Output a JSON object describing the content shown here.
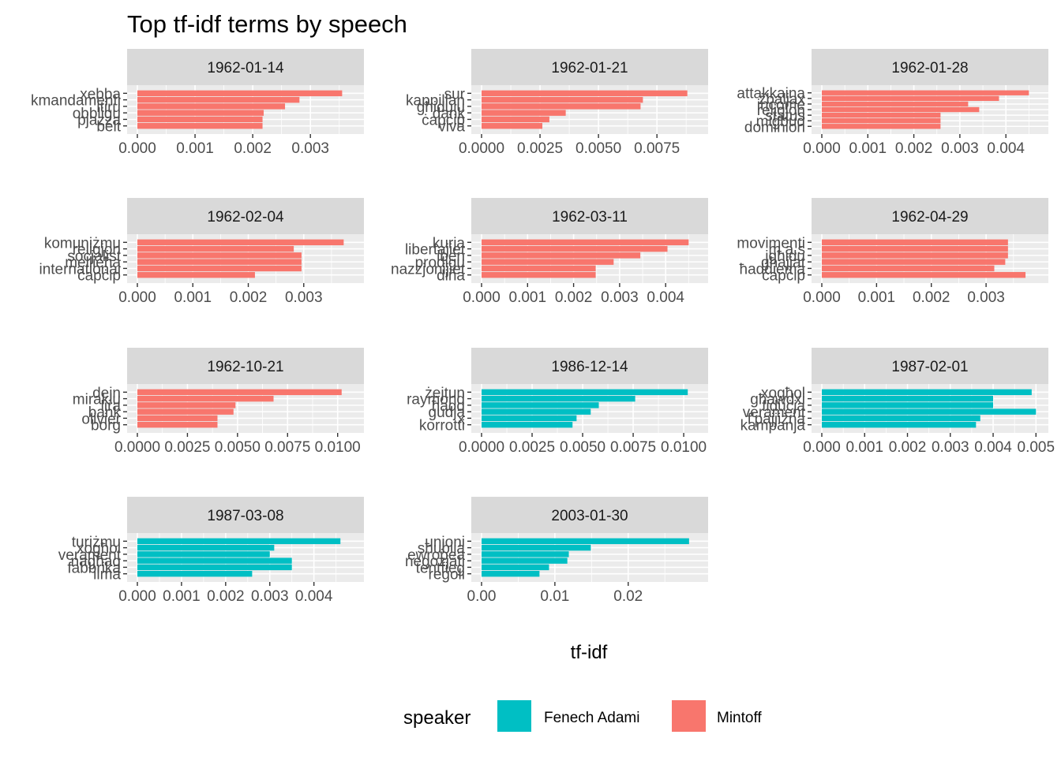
{
  "chart_data": {
    "type": "bar",
    "orientation": "horizontal",
    "title": "Top tf-idf terms by speech",
    "xlabel": "tf-idf",
    "ylabel": "",
    "grid": true,
    "legend": {
      "title": "speaker",
      "position": "bottom",
      "items": [
        {
          "name": "Fenech Adami",
          "color": "#00BFC4"
        },
        {
          "name": "Mintoff",
          "color": "#F8766D"
        }
      ]
    },
    "panels": [
      {
        "strip": "1962-01-14",
        "speaker": "Mintoff",
        "xlim": [
          0,
          0.00375
        ],
        "xticks": [
          0,
          0.001,
          0.002,
          0.003
        ],
        "xtick_labels": [
          "0.000",
          "0.001",
          "0.002",
          "0.003"
        ],
        "terms": [
          "xebba",
          "kmandamenti",
          "itiru",
          "obbligu",
          "pjazza",
          "belt"
        ],
        "values": [
          0.00355,
          0.00281,
          0.00256,
          0.00219,
          0.00217,
          0.00217
        ]
      },
      {
        "strip": "1962-01-21",
        "speaker": "Mintoff",
        "xlim": [
          0,
          0.00925
        ],
        "xticks": [
          0,
          0.0025,
          0.005,
          0.0075
        ],
        "xtick_labels": [
          "0.0000",
          "0.0025",
          "0.0050",
          "0.0075"
        ],
        "terms": [
          "sur",
          "kappillan",
          "għidulu",
          "dank",
          "ċapċip",
          "viva"
        ],
        "values": [
          0.0088,
          0.0069,
          0.0068,
          0.0036,
          0.0029,
          0.0026
        ]
      },
      {
        "strip": "1962-01-28",
        "speaker": "Mintoff",
        "xlim": [
          0,
          0.0047
        ],
        "xticks": [
          0,
          0.001,
          0.002,
          0.003,
          0.004
        ],
        "xtick_labels": [
          "0.000",
          "0.001",
          "0.002",
          "0.003",
          "0.004"
        ],
        "terms": [
          "attakkaina",
          "żbaljax",
          "income",
          "religjon",
          "status",
          "miġbud",
          "dominion"
        ],
        "values": [
          0.0045,
          0.00385,
          0.00318,
          0.00342,
          0.00258,
          0.00258,
          0.00258
        ]
      },
      {
        "strip": "1962-02-04",
        "speaker": "Mintoff",
        "xlim": [
          0,
          0.0039
        ],
        "xticks": [
          0,
          0.001,
          0.002,
          0.003
        ],
        "xtick_labels": [
          "0.000",
          "0.001",
          "0.002",
          "0.003"
        ],
        "terms": [
          "komuniżmu",
          "religjon",
          "soċjalist",
          "mellieħa",
          "international",
          "ċapċip"
        ],
        "values": [
          0.00372,
          0.00282,
          0.00296,
          0.00296,
          0.00296,
          0.00212
        ]
      },
      {
        "strip": "1962-03-11",
        "speaker": "Mintoff",
        "xlim": [
          0,
          0.0047
        ],
        "xticks": [
          0,
          0.001,
          0.002,
          0.003,
          0.004
        ],
        "xtick_labels": [
          "0.000",
          "0.001",
          "0.002",
          "0.003",
          "0.004"
        ],
        "terms": [
          "kurja",
          "libertajiet",
          "iben",
          "prodigu",
          "nazzjonijiet",
          "dina"
        ],
        "values": [
          0.0045,
          0.00404,
          0.00345,
          0.00287,
          0.00248,
          0.00248
        ]
      },
      {
        "strip": "1962-04-29",
        "speaker": "Mintoff",
        "xlim": [
          0,
          0.00395
        ],
        "xticks": [
          0,
          0.001,
          0.002,
          0.003
        ],
        "xtick_labels": [
          "0.000",
          "0.001",
          "0.002",
          "0.003"
        ],
        "terms": [
          "movimenti",
          "m.a.s",
          "jgħidu",
          "għajjat",
          "ħaddiema",
          "ċapċip"
        ],
        "values": [
          0.0034,
          0.0034,
          0.0034,
          0.00335,
          0.00315,
          0.00372
        ]
      },
      {
        "strip": "1962-10-21",
        "speaker": "Mintoff",
        "xlim": [
          0,
          0.0108
        ],
        "xticks": [
          0,
          0.0025,
          0.005,
          0.0075,
          0.01
        ],
        "xtick_labels": [
          "0.0000",
          "0.0025",
          "0.0050",
          "0.0075",
          "0.0100"
        ],
        "terms": [
          "dejn",
          "miraklu",
          "lira",
          "bank",
          "olivier",
          "borg"
        ],
        "values": [
          0.0102,
          0.0068,
          0.0049,
          0.0048,
          0.004,
          0.004
        ]
      },
      {
        "strip": "1986-12-14",
        "speaker": "Fenech Adami",
        "xlim": [
          0,
          0.0107
        ],
        "xticks": [
          0,
          0.0025,
          0.005,
          0.0075,
          0.01
        ],
        "xtick_labels": [
          "0.0000",
          "0.0025",
          "0.0050",
          "0.0075",
          "0.0100"
        ],
        "terms": [
          "żejtun",
          "raymond",
          "ħaqq",
          "gudja",
          "x",
          "korrotti"
        ],
        "values": [
          0.0102,
          0.0076,
          0.0058,
          0.0054,
          0.0047,
          0.0045
        ]
      },
      {
        "strip": "1987-02-01",
        "speaker": "Fenech Adami",
        "xlim": [
          0,
          0.00505
        ],
        "xticks": [
          0,
          0.001,
          0.002,
          0.003,
          0.004,
          0.005
        ],
        "xtick_labels": [
          "0.000",
          "0.001",
          "0.002",
          "0.003",
          "0.004",
          "0.005"
        ],
        "terms": [
          "xogħol",
          "għawdxi",
          "fiduċja",
          "verament",
          "f'pajjiżna",
          "kampanja"
        ],
        "values": [
          0.0049,
          0.004,
          0.004,
          0.005,
          0.0037,
          0.0036
        ]
      },
      {
        "strip": "1987-03-08",
        "speaker": "Fenech Adami",
        "xlim": [
          0,
          0.0049
        ],
        "xticks": [
          0,
          0.001,
          0.002,
          0.003,
          0.004
        ],
        "xtick_labels": [
          "0.000",
          "0.001",
          "0.002",
          "0.003",
          "0.004"
        ],
        "terms": [
          "turiżmu",
          "xogħol",
          "verament",
          "nagħaq",
          "fabbrika",
          "ilma"
        ],
        "values": [
          0.0046,
          0.0031,
          0.003,
          0.0035,
          0.0035,
          0.0026
        ]
      },
      {
        "strip": "2003-01-30",
        "speaker": "Fenech Adami",
        "xlim": [
          0,
          0.0295
        ],
        "xticks": [
          0,
          0.01,
          0.02
        ],
        "xtick_labels": [
          "0.00",
          "0.01",
          "0.02"
        ],
        "terms": [
          "unjoni",
          "sħubija",
          "ewropea",
          "negozjati",
          "tentfieg",
          "regoli"
        ],
        "values": [
          0.0283,
          0.0149,
          0.0119,
          0.0117,
          0.0092,
          0.0079
        ]
      }
    ]
  }
}
